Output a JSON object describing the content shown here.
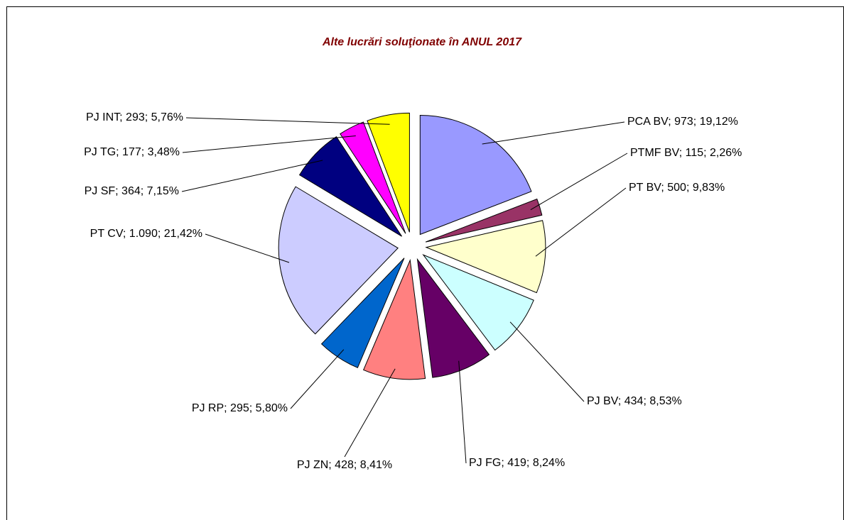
{
  "chart_data": {
    "type": "pie",
    "title": "Alte lucrări soluţionate în ANUL 2017",
    "values": [
      973,
      115,
      500,
      434,
      419,
      428,
      295,
      1090,
      364,
      177,
      293
    ],
    "value_labels": [
      "PCA BV; 973; 19,12%",
      "PTMF BV; 115; 2,26%",
      "PT BV; 500; 9,83%",
      "PJ BV; 434; 8,53%",
      "PJ FG; 419; 8,24%",
      "PJ ZN; 428; 8,41%",
      "PJ RP; 295; 5,80%",
      "PT CV; 1.090; 21,42%",
      "PJ SF; 364; 7,15%",
      "PJ TG; 177; 3,48%",
      "PJ INT; 293; 5,76%"
    ],
    "colors": [
      "#9999ff",
      "#993366",
      "#ffffcc",
      "#ccffff",
      "#660066",
      "#ff8080",
      "#0066cc",
      "#ccccff",
      "#000080",
      "#ff00ff",
      "#ffff00"
    ]
  }
}
